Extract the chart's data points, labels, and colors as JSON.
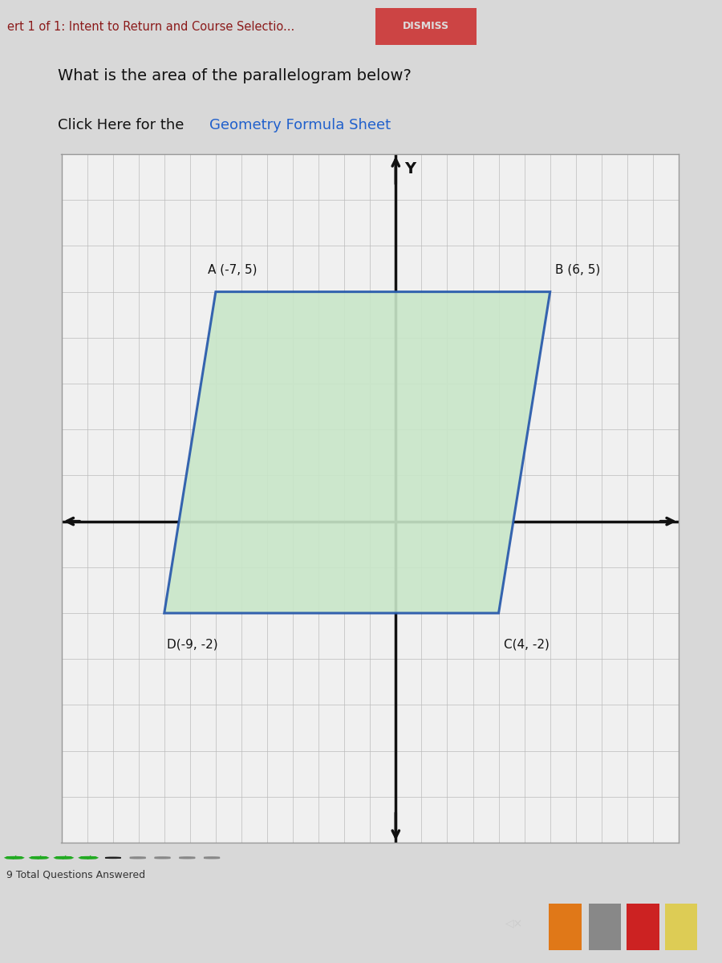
{
  "title_bar_text": "ert 1 of 1: Intent to Return and Course Selectio...",
  "dismiss_text": "DISMISS",
  "question_text": "What is the area of the parallelogram below?",
  "link_text_prefix": "Click Here for the ",
  "link_text": "Geometry Formula Sheet",
  "y_axis_label": "Y",
  "points": {
    "A": [
      -7,
      5
    ],
    "B": [
      6,
      5
    ],
    "C": [
      4,
      -2
    ],
    "D": [
      -9,
      -2
    ]
  },
  "point_labels": {
    "A": "A (-7, 5)",
    "B": "B (6, 5)",
    "C": "C(4, -2)",
    "D": "D(-9, -2)"
  },
  "grid_color": "#bbbbbb",
  "parallelogram_fill": "#c8e6c8",
  "parallelogram_edge": "#2255aa",
  "parallelogram_edge_width": 2.2,
  "axis_color": "#111111",
  "graph_bg": "#f0f0f0",
  "graph_border": "#999999",
  "outer_bg": "#c0c0c0",
  "page_bg": "#d8d8d8",
  "header_bg": "#d0d0d0",
  "dismiss_bg": "#cc4444",
  "progress_checkmarks": 4,
  "progress_dots_total": 9,
  "bottom_text": "9 Total Questions Answered",
  "xlim": [
    -13,
    11
  ],
  "ylim": [
    -7,
    8
  ],
  "taskbar_bg": "#1c2b3a",
  "title_color": "#8b1a1a",
  "label_fontsize": 11,
  "question_fontsize": 14,
  "link_color": "#2060cc"
}
